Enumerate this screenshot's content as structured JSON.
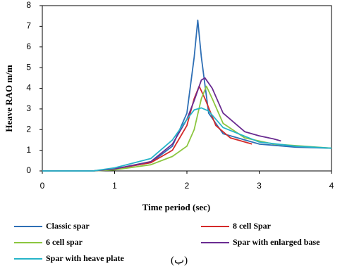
{
  "chart_data": {
    "type": "line",
    "x_label": "Time period (sec)",
    "y_label": "Heave RAO m/m",
    "caption": "(ب)",
    "xlim": [
      0,
      4
    ],
    "ylim": [
      0,
      8
    ],
    "xticks": [
      0,
      1,
      2,
      3,
      4
    ],
    "yticks": [
      0,
      1,
      2,
      3,
      4,
      5,
      6,
      7,
      8
    ],
    "series": [
      {
        "name": "Classic spar",
        "color": "#2e6fb5",
        "x": [
          0,
          0.7,
          1,
          1.5,
          1.8,
          2.0,
          2.1,
          2.15,
          2.2,
          2.3,
          2.5,
          3.0,
          3.5,
          4.0
        ],
        "values": [
          0,
          0,
          0.1,
          0.4,
          1.2,
          2.8,
          5.5,
          7.3,
          5.5,
          2.8,
          1.8,
          1.3,
          1.15,
          1.1
        ]
      },
      {
        "name": "8 cell Spar",
        "color": "#d42a2a",
        "x": [
          0,
          0.7,
          1,
          1.5,
          1.8,
          2.0,
          2.1,
          2.17,
          2.25,
          2.4,
          2.6,
          2.9
        ],
        "values": [
          0,
          0,
          0.1,
          0.4,
          1.0,
          2.2,
          3.5,
          4.1,
          3.5,
          2.2,
          1.6,
          1.3
        ]
      },
      {
        "name": "6 cell spar",
        "color": "#8cc63f",
        "x": [
          0,
          0.7,
          1,
          1.5,
          1.8,
          2.0,
          2.1,
          2.2,
          2.27,
          2.35,
          2.5,
          2.8,
          3.2,
          4.0
        ],
        "values": [
          0,
          0,
          0.05,
          0.3,
          0.7,
          1.2,
          2.0,
          3.5,
          4.1,
          3.5,
          2.3,
          1.6,
          1.3,
          1.1
        ]
      },
      {
        "name": "Spar with enlarged base",
        "color": "#6a2c91",
        "x": [
          0,
          0.7,
          1,
          1.5,
          1.8,
          2.0,
          2.1,
          2.2,
          2.25,
          2.35,
          2.5,
          2.8,
          3.0,
          3.2,
          3.3
        ],
        "values": [
          0,
          0,
          0.1,
          0.45,
          1.3,
          2.5,
          3.4,
          4.4,
          4.5,
          4.0,
          2.8,
          1.9,
          1.7,
          1.55,
          1.45
        ]
      },
      {
        "name": "Spar with heave plate",
        "color": "#25b4c8",
        "x": [
          0,
          0.7,
          1,
          1.5,
          1.8,
          2.0,
          2.1,
          2.2,
          2.3,
          2.5,
          3.0,
          3.5,
          4.0
        ],
        "values": [
          0,
          0,
          0.15,
          0.6,
          1.5,
          2.5,
          2.95,
          3.05,
          2.9,
          2.1,
          1.4,
          1.2,
          1.1
        ]
      }
    ]
  }
}
